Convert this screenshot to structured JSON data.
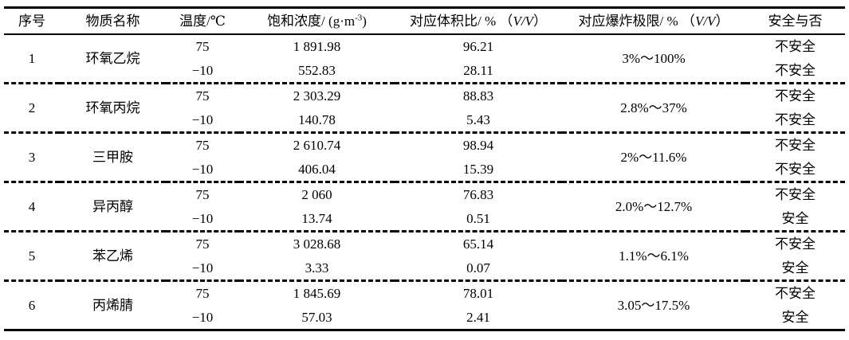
{
  "table": {
    "headers": {
      "index": "序号",
      "name": "物质名称",
      "temperature": "温度/℃",
      "concentration_prefix": "饱和浓度/ (g·m",
      "concentration_sup": "-3",
      "concentration_suffix": ")",
      "volume_prefix": "对应体积比/ % （",
      "volume_italic": "V/V",
      "volume_suffix": "）",
      "explosion_prefix": "对应爆炸极限/ % （",
      "explosion_italic": "V/V",
      "explosion_suffix": "）",
      "safety": "安全与否"
    },
    "groups": [
      {
        "index": "1",
        "name": "环氧乙烷",
        "temp_high": "75",
        "temp_low": "−10",
        "conc_high": "1 891.98",
        "conc_low": "552.83",
        "vol_high": "96.21",
        "vol_low": "28.11",
        "explosion": "3%～100%",
        "safety_high": "不安全",
        "safety_low": "不安全"
      },
      {
        "index": "2",
        "name": "环氧丙烷",
        "temp_high": "75",
        "temp_low": "−10",
        "conc_high": "2 303.29",
        "conc_low": "140.78",
        "vol_high": "88.83",
        "vol_low": "5.43",
        "explosion": "2.8%～37%",
        "safety_high": "不安全",
        "safety_low": "不安全"
      },
      {
        "index": "3",
        "name": "三甲胺",
        "temp_high": "75",
        "temp_low": "−10",
        "conc_high": "2 610.74",
        "conc_low": "406.04",
        "vol_high": "98.94",
        "vol_low": "15.39",
        "explosion": "2%～11.6%",
        "safety_high": "不安全",
        "safety_low": "不安全"
      },
      {
        "index": "4",
        "name": "异丙醇",
        "temp_high": "75",
        "temp_low": "−10",
        "conc_high": "2 060",
        "conc_low": "13.74",
        "vol_high": "76.83",
        "vol_low": "0.51",
        "explosion": "2.0%～12.7%",
        "safety_high": "不安全",
        "safety_low": "安全"
      },
      {
        "index": "5",
        "name": "苯乙烯",
        "temp_high": "75",
        "temp_low": "−10",
        "conc_high": "3 028.68",
        "conc_low": "3.33",
        "vol_high": "65.14",
        "vol_low": "0.07",
        "explosion": "1.1%～6.1%",
        "safety_high": "不安全",
        "safety_low": "安全"
      },
      {
        "index": "6",
        "name": "丙烯腈",
        "temp_high": "75",
        "temp_low": "−10",
        "conc_high": "1 845.69",
        "conc_low": "57.03",
        "vol_high": "78.01",
        "vol_low": "2.41",
        "explosion": "3.05～17.5%",
        "safety_high": "不安全",
        "safety_low": "安全"
      }
    ]
  }
}
